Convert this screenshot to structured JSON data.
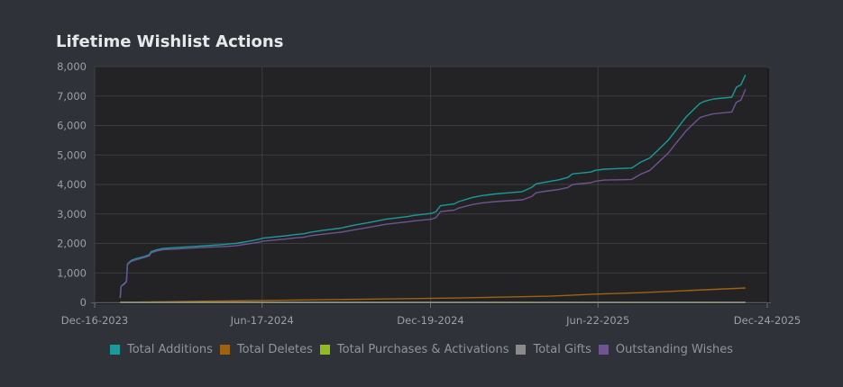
{
  "title": "Lifetime Wishlist Actions",
  "chart_data": {
    "type": "line",
    "title": "Lifetime Wishlist Actions",
    "ylim": [
      0,
      8000
    ],
    "yticks": [
      0,
      1000,
      2000,
      3000,
      4000,
      5000,
      6000,
      7000,
      8000
    ],
    "ytick_labels": [
      "0",
      "1,000",
      "2,000",
      "3,000",
      "4,000",
      "5,000",
      "6,000",
      "7,000",
      "8,000"
    ],
    "xlim_days": [
      0,
      739
    ],
    "xticks_days": [
      0,
      184,
      369,
      553,
      739
    ],
    "xtick_labels": [
      "Dec-16-2023",
      "Jun-17-2024",
      "Dec-19-2024",
      "Jun-22-2025",
      "Dec-24-2025"
    ],
    "x_unit": "days since Dec-16-2023",
    "series": [
      {
        "name": "Total Additions",
        "color": "#1a9a9a",
        "x": [
          28,
          29,
          33,
          35,
          36,
          40,
          45,
          55,
          60,
          62,
          68,
          75,
          90,
          110,
          130,
          140,
          150,
          155,
          170,
          180,
          185,
          210,
          220,
          230,
          237,
          250,
          270,
          285,
          300,
          320,
          345,
          350,
          370,
          375,
          380,
          395,
          400,
          415,
          425,
          440,
          455,
          470,
          480,
          485,
          495,
          510,
          520,
          525,
          545,
          550,
          560,
          575,
          590,
          595,
          600,
          610,
          620,
          630,
          640,
          645,
          650,
          665,
          670,
          680,
          700,
          705,
          710,
          715
        ],
        "y": [
          150,
          550,
          650,
          720,
          1300,
          1420,
          1480,
          1560,
          1620,
          1720,
          1780,
          1830,
          1860,
          1900,
          1940,
          1960,
          1990,
          2000,
          2080,
          2140,
          2180,
          2260,
          2300,
          2330,
          2380,
          2440,
          2520,
          2620,
          2700,
          2820,
          2920,
          2950,
          3020,
          3080,
          3280,
          3340,
          3420,
          3560,
          3620,
          3680,
          3720,
          3760,
          3900,
          4020,
          4080,
          4160,
          4240,
          4360,
          4420,
          4480,
          4520,
          4540,
          4560,
          4660,
          4760,
          4900,
          5200,
          5500,
          5900,
          6100,
          6300,
          6750,
          6820,
          6900,
          6960,
          7300,
          7380,
          7720
        ]
      },
      {
        "name": "Total Deletes",
        "color": "#a0620f",
        "x": [
          28,
          100,
          200,
          300,
          400,
          500,
          550,
          600,
          650,
          715
        ],
        "y": [
          0,
          30,
          70,
          110,
          150,
          210,
          280,
          330,
          400,
          490
        ]
      },
      {
        "name": "Total Purchases & Activations",
        "color": "#8fbd21",
        "x": [
          28,
          715
        ],
        "y": [
          0,
          0
        ]
      },
      {
        "name": "Total Gifts",
        "color": "#8a8a8a",
        "x": [
          28,
          715
        ],
        "y": [
          0,
          0
        ]
      },
      {
        "name": "Outstanding Wishes",
        "color": "#6e5493",
        "x": [
          28,
          29,
          33,
          35,
          36,
          40,
          45,
          55,
          60,
          62,
          68,
          75,
          90,
          110,
          130,
          140,
          150,
          155,
          170,
          180,
          185,
          210,
          220,
          230,
          237,
          250,
          270,
          285,
          300,
          320,
          345,
          350,
          370,
          375,
          380,
          395,
          400,
          415,
          425,
          440,
          455,
          470,
          480,
          485,
          495,
          510,
          520,
          525,
          545,
          550,
          560,
          575,
          590,
          595,
          600,
          610,
          620,
          630,
          640,
          645,
          650,
          665,
          670,
          680,
          700,
          705,
          710,
          715
        ],
        "y": [
          150,
          540,
          630,
          700,
          1280,
          1390,
          1440,
          1530,
          1580,
          1680,
          1740,
          1790,
          1810,
          1850,
          1880,
          1890,
          1910,
          1920,
          1990,
          2040,
          2080,
          2150,
          2190,
          2210,
          2260,
          2310,
          2380,
          2460,
          2540,
          2650,
          2740,
          2760,
          2820,
          2880,
          3080,
          3130,
          3200,
          3320,
          3370,
          3420,
          3450,
          3480,
          3590,
          3720,
          3770,
          3830,
          3900,
          4000,
          4060,
          4110,
          4150,
          4160,
          4170,
          4260,
          4350,
          4480,
          4770,
          5060,
          5450,
          5630,
          5830,
          6270,
          6320,
          6400,
          6460,
          6790,
          6860,
          7230
        ]
      }
    ],
    "legend": "bottom",
    "grid": true
  }
}
